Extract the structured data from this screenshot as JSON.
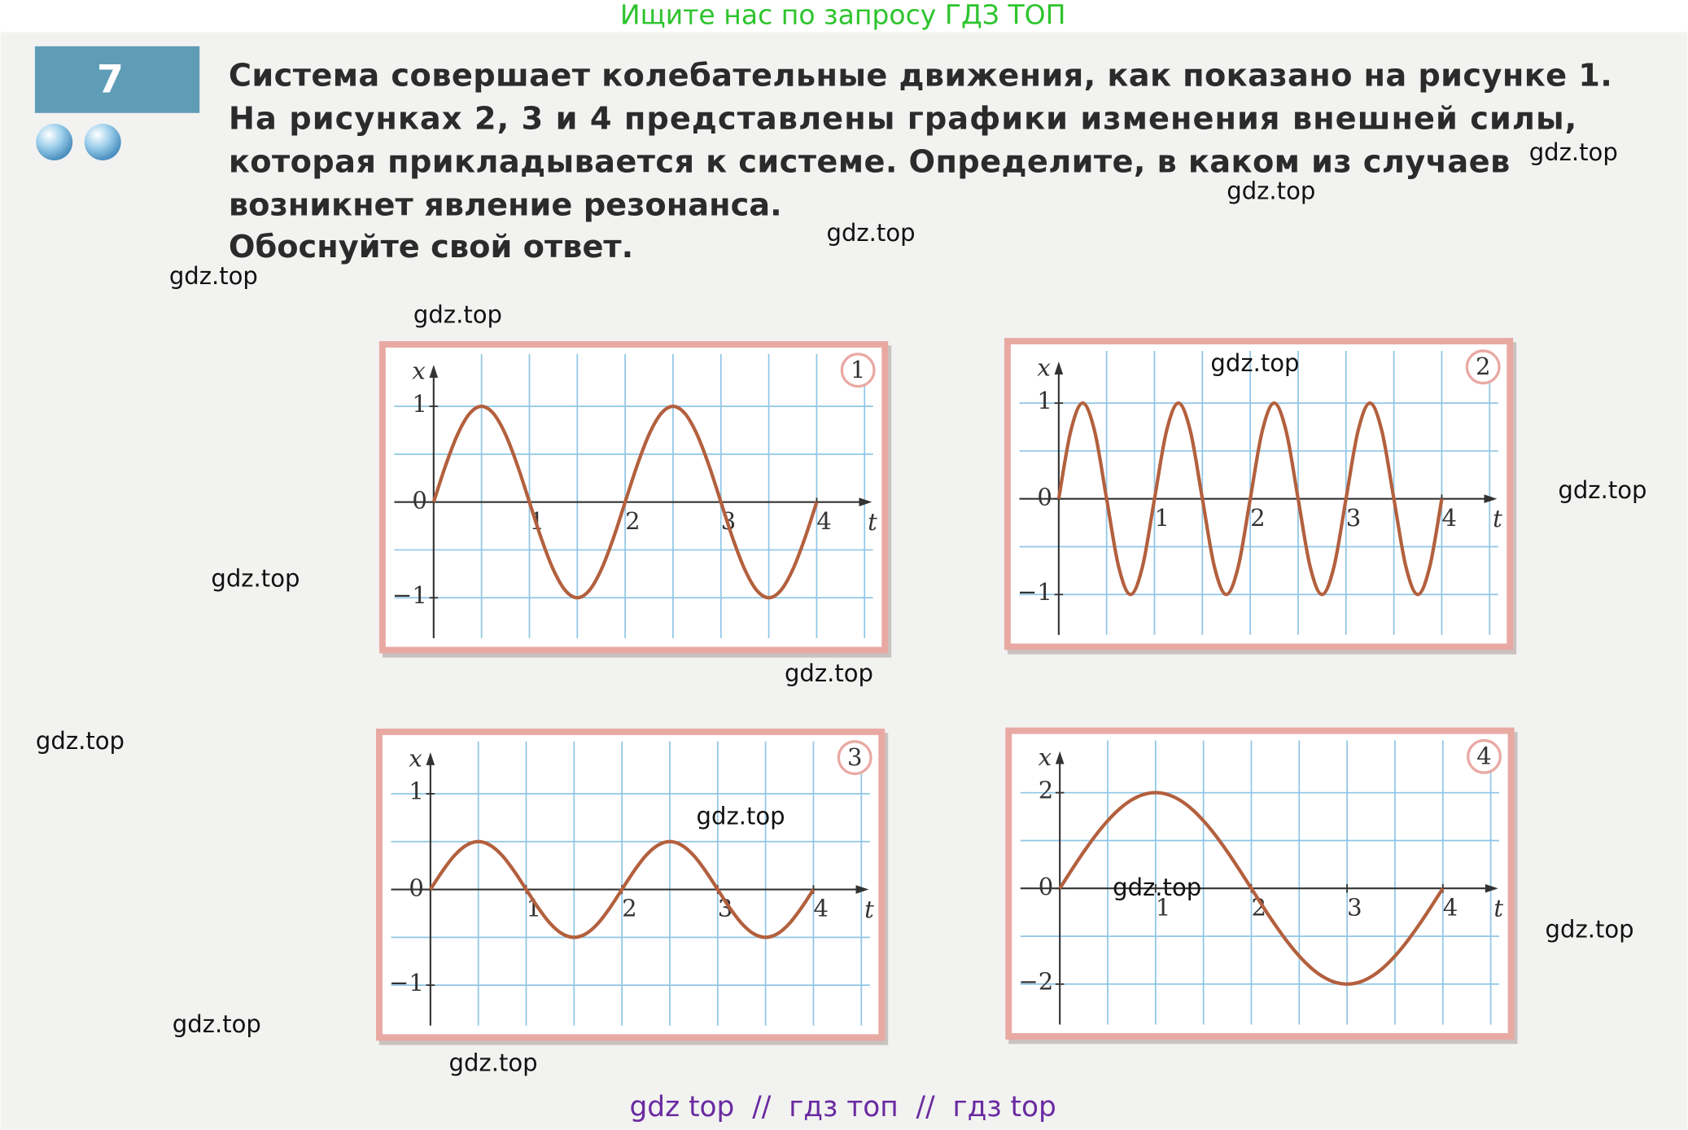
{
  "banner": "Ищите нас по запросу ГДЗ ТОП",
  "task": {
    "number": "7",
    "lines": [
      "Система совершает колебательные движения, как показано на рисунке 1.",
      "На рисунках 2, 3 и 4 представлены графики изменения внешней силы,",
      "которая прикладывается к системе. Определите, в каком из случаев",
      "возникнет явление резонанса.",
      "Обоснуйте свой ответ."
    ]
  },
  "figures": [
    {
      "number": "1",
      "x_axis_label": "t",
      "y_axis_label": "x",
      "xlim": [
        -0.4,
        4.6
      ],
      "ylim": [
        -1.4,
        1.4
      ],
      "xticks": [
        1,
        2,
        3,
        4
      ],
      "yticks": [
        1,
        0,
        {
          "value": -1,
          "label": "−1"
        }
      ],
      "grid_x": [
        0.5,
        1,
        1.5,
        2,
        2.5,
        3,
        3.5,
        4,
        4.5
      ],
      "grid_y": [
        -1,
        -0.5,
        0.5,
        1
      ],
      "x": [
        0,
        0.125,
        0.25,
        0.375,
        0.5,
        0.625,
        0.75,
        0.875,
        1,
        1.125,
        1.25,
        1.375,
        1.5,
        1.625,
        1.75,
        1.875,
        2,
        2.125,
        2.25,
        2.375,
        2.5,
        2.625,
        2.75,
        2.875,
        3,
        3.125,
        3.25,
        3.375,
        3.5,
        3.625,
        3.75,
        3.875,
        4
      ],
      "values": [
        0,
        0.383,
        0.707,
        0.924,
        1,
        0.924,
        0.707,
        0.383,
        0,
        -0.383,
        -0.707,
        -0.924,
        -1,
        -0.924,
        -0.707,
        -0.383,
        0,
        0.383,
        0.707,
        0.924,
        1,
        0.924,
        0.707,
        0.383,
        0,
        -0.383,
        -0.707,
        -0.924,
        -1,
        -0.924,
        -0.707,
        -0.383,
        0
      ]
    },
    {
      "number": "2",
      "x_axis_label": "t",
      "y_axis_label": "x",
      "xlim": [
        -0.4,
        4.6
      ],
      "ylim": [
        -1.4,
        1.4
      ],
      "xticks": [
        1,
        2,
        3,
        4
      ],
      "yticks": [
        1,
        0,
        {
          "value": -1,
          "label": "−1"
        }
      ],
      "grid_x": [
        0.5,
        1,
        1.5,
        2,
        2.5,
        3,
        3.5,
        4,
        4.5
      ],
      "grid_y": [
        -1,
        -0.5,
        0.5,
        1
      ],
      "x": [
        0,
        0.125,
        0.25,
        0.375,
        0.5,
        0.625,
        0.75,
        0.875,
        1,
        1.125,
        1.25,
        1.375,
        1.5,
        1.625,
        1.75,
        1.875,
        2,
        2.125,
        2.25,
        2.375,
        2.5,
        2.625,
        2.75,
        2.875,
        3,
        3.125,
        3.25,
        3.375,
        3.5,
        3.625,
        3.75,
        3.875,
        4
      ],
      "values": [
        0,
        0.707,
        1,
        0.707,
        0,
        -0.707,
        -1,
        -0.707,
        0,
        0.707,
        1,
        0.707,
        0,
        -0.707,
        -1,
        -0.707,
        0,
        0.707,
        1,
        0.707,
        0,
        -0.707,
        -1,
        -0.707,
        0,
        0.707,
        1,
        0.707,
        0,
        -0.707,
        -1,
        -0.707,
        0
      ]
    },
    {
      "number": "3",
      "x_axis_label": "t",
      "y_axis_label": "x",
      "xlim": [
        -0.4,
        4.6
      ],
      "ylim": [
        -1.4,
        1.4
      ],
      "xticks": [
        1,
        2,
        3,
        4
      ],
      "yticks": [
        1,
        0,
        {
          "value": -1,
          "label": "−1"
        }
      ],
      "grid_x": [
        0.5,
        1,
        1.5,
        2,
        2.5,
        3,
        3.5,
        4,
        4.5
      ],
      "grid_y": [
        -1,
        -0.5,
        0.5,
        1
      ],
      "x": [
        0,
        0.125,
        0.25,
        0.375,
        0.5,
        0.625,
        0.75,
        0.875,
        1,
        1.125,
        1.25,
        1.375,
        1.5,
        1.625,
        1.75,
        1.875,
        2,
        2.125,
        2.25,
        2.375,
        2.5,
        2.625,
        2.75,
        2.875,
        3,
        3.125,
        3.25,
        3.375,
        3.5,
        3.625,
        3.75,
        3.875,
        4
      ],
      "values": [
        0,
        0.191,
        0.354,
        0.462,
        0.5,
        0.462,
        0.354,
        0.191,
        0,
        -0.191,
        -0.354,
        -0.462,
        -0.5,
        -0.462,
        -0.354,
        -0.191,
        0,
        0.191,
        0.354,
        0.462,
        0.5,
        0.462,
        0.354,
        0.191,
        0,
        -0.191,
        -0.354,
        -0.462,
        -0.5,
        -0.462,
        -0.354,
        -0.191,
        0
      ]
    },
    {
      "number": "4",
      "x_axis_label": "t",
      "y_axis_label": "x",
      "xlim": [
        -0.4,
        4.6
      ],
      "ylim": [
        -2.8,
        2.8
      ],
      "xticks": [
        1,
        2,
        3,
        4
      ],
      "yticks": [
        2,
        0,
        {
          "value": -2,
          "label": "−2"
        }
      ],
      "grid_x": [
        0.5,
        1,
        1.5,
        2,
        2.5,
        3,
        3.5,
        4,
        4.5
      ],
      "grid_y": [
        -2,
        -1,
        1,
        2
      ],
      "x": [
        0,
        0.125,
        0.25,
        0.375,
        0.5,
        0.625,
        0.75,
        0.875,
        1,
        1.125,
        1.25,
        1.375,
        1.5,
        1.625,
        1.75,
        1.875,
        2,
        2.125,
        2.25,
        2.375,
        2.5,
        2.625,
        2.75,
        2.875,
        3,
        3.125,
        3.25,
        3.375,
        3.5,
        3.625,
        3.75,
        3.875,
        4
      ],
      "values": [
        0,
        0.39,
        0.765,
        1.111,
        1.414,
        1.663,
        1.848,
        1.962,
        2,
        1.962,
        1.848,
        1.663,
        1.414,
        1.111,
        0.765,
        0.39,
        0,
        -0.39,
        -0.765,
        -1.111,
        -1.414,
        -1.663,
        -1.848,
        -1.962,
        -2,
        -1.962,
        -1.848,
        -1.663,
        -1.414,
        -1.111,
        -0.765,
        -0.39,
        0
      ]
    }
  ],
  "watermarks": [
    "gdz.top",
    "gdz.top",
    "gdz.top",
    "gdz.top",
    "gdz.top",
    "gdz.top",
    "gdz.top",
    "gdz.top",
    "gdz.top",
    "gdz.top",
    "gdz.top",
    "gdz.top",
    "gdz.top",
    "gdz.top",
    "gdz.top"
  ],
  "footer": "gdz top  //  гдз топ  //  гдз top"
}
